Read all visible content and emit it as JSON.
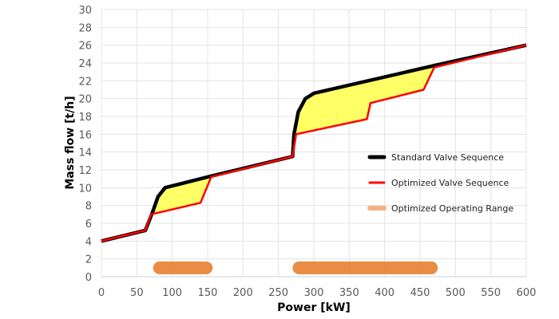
{
  "chart_data": {
    "type": "line",
    "title": "",
    "xlabel": "Power [kW]",
    "ylabel": "Mass flow [t/h]",
    "xlim": [
      0,
      600
    ],
    "ylim": [
      0,
      30
    ],
    "xticks": [
      0,
      50,
      100,
      150,
      200,
      250,
      300,
      350,
      400,
      450,
      500,
      550,
      600
    ],
    "yticks": [
      0,
      2,
      4,
      6,
      8,
      10,
      12,
      14,
      16,
      18,
      20,
      22,
      24,
      26,
      28,
      30
    ],
    "grid": true,
    "legend_position": "right",
    "series": [
      {
        "name": "Standard Valve Sequence",
        "color": "#000000",
        "points": [
          [
            0,
            4
          ],
          [
            62,
            5.2
          ],
          [
            72,
            7.2
          ],
          [
            80,
            9
          ],
          [
            90,
            10
          ],
          [
            155,
            11.3
          ],
          [
            270,
            13.5
          ],
          [
            272,
            16
          ],
          [
            278,
            18.5
          ],
          [
            288,
            20
          ],
          [
            300,
            20.6
          ],
          [
            475,
            23.8
          ],
          [
            600,
            26
          ]
        ]
      },
      {
        "name": "Optimized Valve Sequence",
        "color": "#ff0000",
        "points": [
          [
            0,
            4
          ],
          [
            62,
            5.2
          ],
          [
            70,
            7
          ],
          [
            140,
            8.3
          ],
          [
            155,
            11.2
          ],
          [
            270,
            13.5
          ],
          [
            275,
            16
          ],
          [
            375,
            17.7
          ],
          [
            380,
            19.5
          ],
          [
            455,
            21
          ],
          [
            470,
            23.5
          ],
          [
            600,
            26
          ]
        ]
      },
      {
        "name": "Optimized Operating Range",
        "color": "#f4b183",
        "bar_color": "#e8863a",
        "y": 1,
        "ranges": [
          [
            73,
            157
          ],
          [
            270,
            475
          ]
        ]
      }
    ],
    "fill_between": {
      "color": "#ffff66",
      "between": [
        "Standard Valve Sequence",
        "Optimized Valve Sequence"
      ]
    }
  }
}
